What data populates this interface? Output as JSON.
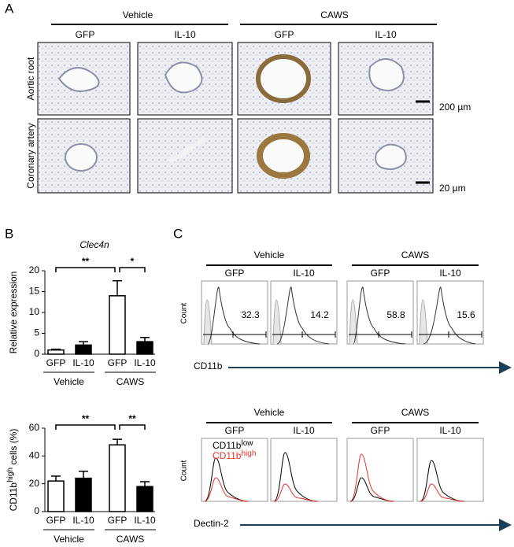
{
  "panel_a": {
    "label": "A",
    "groups": [
      "Vehicle",
      "CAWS"
    ],
    "columns": [
      "GFP",
      "IL-10",
      "GFP",
      "IL-10"
    ],
    "rows": [
      "Aortic root",
      "Coronary artery"
    ],
    "scale_bars": [
      "200 µm",
      "20 µm"
    ]
  },
  "panel_b": {
    "label": "B"
  },
  "chart_data": [
    {
      "type": "bar",
      "title": "Clec4n",
      "ylabel": [
        "Relative expression"
      ],
      "categories": [
        "GFP",
        "IL-10",
        "GFP",
        "IL-10"
      ],
      "groups": [
        "Vehicle",
        "CAWS"
      ],
      "values": [
        1.0,
        2.2,
        14,
        3.0
      ],
      "errors": [
        0.2,
        0.8,
        3.6,
        1.0
      ],
      "colors": [
        "#ffffff",
        "#000000",
        "#ffffff",
        "#000000"
      ],
      "ylim": [
        0,
        20
      ],
      "yticks": [
        0,
        5,
        10,
        15,
        20
      ],
      "significance": [
        "**",
        "*"
      ]
    },
    {
      "type": "bar",
      "ylabel": [
        "CD11b",
        "high",
        " cells (%)"
      ],
      "categories": [
        "GFP",
        "IL-10",
        "GFP",
        "IL-10"
      ],
      "groups": [
        "Vehicle",
        "CAWS"
      ],
      "values": [
        22,
        24,
        48,
        18
      ],
      "errors": [
        3.5,
        5,
        4,
        3.5
      ],
      "colors": [
        "#ffffff",
        "#000000",
        "#ffffff",
        "#000000"
      ],
      "ylim": [
        0,
        60
      ],
      "yticks": [
        0,
        20,
        40,
        60
      ],
      "significance": [
        "**",
        "**"
      ]
    }
  ],
  "panel_c": {
    "label": "C",
    "groups": [
      "Vehicle",
      "CAWS"
    ],
    "columns": [
      "GFP",
      "IL-10",
      "GFP",
      "IL-10"
    ],
    "ylabel": "Count",
    "top": {
      "marker": "CD11b",
      "percentages": [
        "32.3",
        "14.2",
        "58.8",
        "15.6"
      ]
    },
    "bottom": {
      "marker": "Dectin-2",
      "legend": [
        {
          "text": "CD11b",
          "sup": "low",
          "color": "#000000"
        },
        {
          "text": "CD11b",
          "sup": "high",
          "color": "#e8322b"
        }
      ]
    }
  }
}
